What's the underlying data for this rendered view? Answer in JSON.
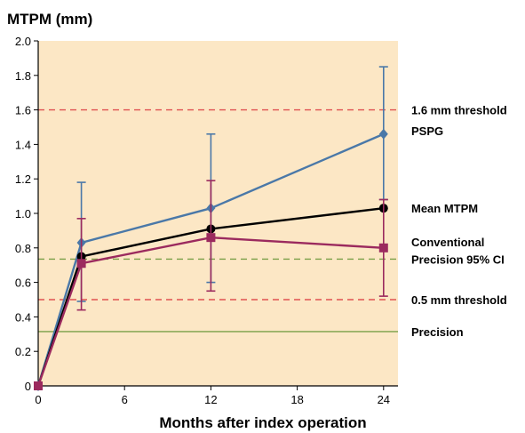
{
  "chart_data": {
    "type": "line",
    "ylabel": "MTPM (mm)",
    "xlabel": "Months after index operation",
    "xlim": [
      0,
      25
    ],
    "ylim": [
      0,
      2.0
    ],
    "x_ticks": [
      "0",
      "6",
      "12",
      "18",
      "24"
    ],
    "y_ticks": [
      "0",
      "0.2",
      "0.4",
      "0.6",
      "0.8",
      "1.0",
      "1.2",
      "1.4",
      "1.6",
      "1.8",
      "2.0"
    ],
    "grid": false,
    "background_color": "#fce7c5",
    "series": [
      {
        "name": "PSPG",
        "color": "#4a78a8",
        "marker": "diamond",
        "x": [
          0,
          3,
          12,
          24
        ],
        "y": [
          0,
          0.83,
          1.03,
          1.46
        ],
        "err_low": [
          0,
          0.49,
          0.6,
          1.08
        ],
        "err_high": [
          0,
          1.18,
          1.46,
          1.85
        ]
      },
      {
        "name": "Mean MTPM",
        "color": "#000000",
        "marker": "circle",
        "x": [
          0,
          3,
          12,
          24
        ],
        "y": [
          0,
          0.75,
          0.91,
          1.03
        ]
      },
      {
        "name": "Conventional",
        "color": "#9b2a5e",
        "marker": "square",
        "x": [
          0,
          3,
          12,
          24
        ],
        "y": [
          0,
          0.71,
          0.86,
          0.8
        ],
        "err_low": [
          0,
          0.44,
          0.55,
          0.52
        ],
        "err_high": [
          0,
          0.97,
          1.19,
          1.08
        ]
      }
    ],
    "reference_lines": [
      {
        "label": "1.6 mm threshold",
        "y": 1.6,
        "color": "#e05252",
        "style": "dashed"
      },
      {
        "label": "Precision 95% CI",
        "y": 0.735,
        "color": "#7aa048",
        "style": "dashed"
      },
      {
        "label": "0.5 mm threshold",
        "y": 0.5,
        "color": "#e05252",
        "style": "dashed"
      },
      {
        "label": "Precision",
        "y": 0.315,
        "color": "#7aa048",
        "style": "solid"
      }
    ],
    "right_labels": [
      {
        "text": "1.6 mm threshold",
        "y": 1.6
      },
      {
        "text": "PSPG",
        "y": 1.48
      },
      {
        "text": "Mean MTPM",
        "y": 1.03
      },
      {
        "text": "Conventional",
        "y": 0.835
      },
      {
        "text": "Precision 95% CI",
        "y": 0.735
      },
      {
        "text": "0.5 mm threshold",
        "y": 0.5
      },
      {
        "text": "Precision",
        "y": 0.315
      }
    ]
  }
}
